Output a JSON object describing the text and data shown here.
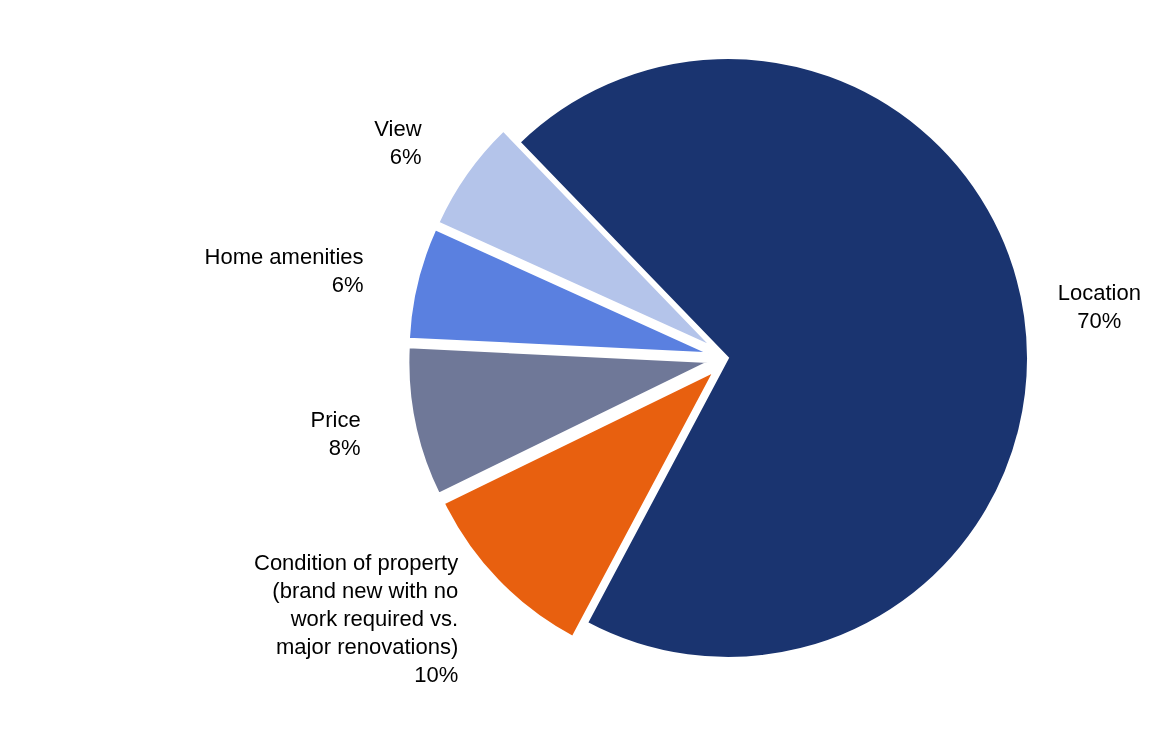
{
  "chart_data": {
    "type": "pie",
    "categories": [
      "Location",
      "Condition of property (brand new with no work required vs. major renovations)",
      "Price",
      "Home amenities",
      "View"
    ],
    "values": [
      70,
      10,
      8,
      6,
      6
    ],
    "colors": [
      "#1a3470",
      "#e8600f",
      "#6f7898",
      "#5a80e0",
      "#b4c4ea"
    ],
    "value_labels": [
      "70%",
      "10%",
      "8%",
      "6%",
      "6%"
    ],
    "legend": false
  }
}
